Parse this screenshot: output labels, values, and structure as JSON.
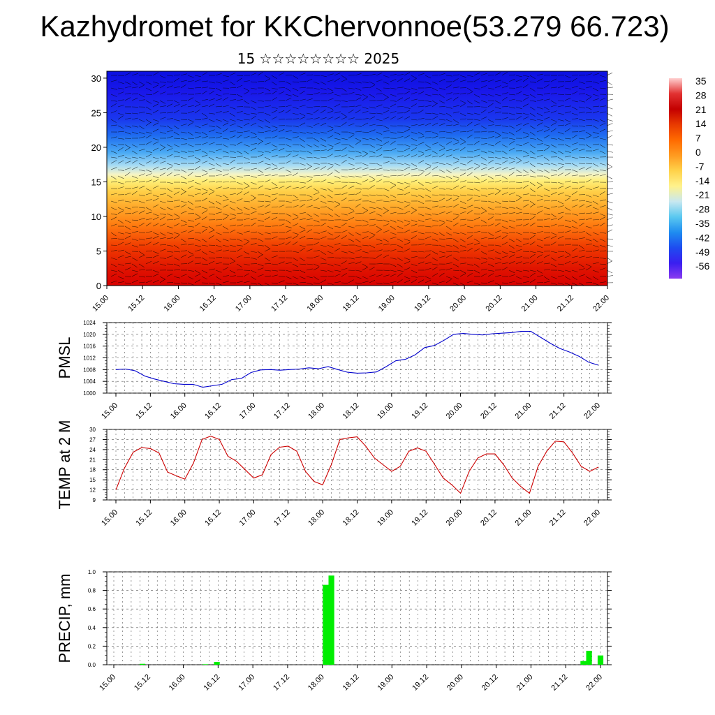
{
  "title": "Kazhydromet for KKChervonnoe(53.279 66.723)",
  "subtitle": "15 ☆☆☆☆☆☆☆☆ 2025",
  "time_labels": [
    "15.00",
    "15.12",
    "16.00",
    "16.12",
    "17.00",
    "17.12",
    "18.00",
    "18.12",
    "19.00",
    "19.12",
    "20.00",
    "20.12",
    "21.00",
    "21.12",
    "22.00"
  ],
  "chart_data": [
    {
      "type": "heatmap",
      "yticks": [
        0,
        5,
        10,
        15,
        20,
        25,
        30
      ],
      "ylim": [
        0,
        31
      ],
      "colorbar": {
        "labels": [
          "35",
          "28",
          "21",
          "14",
          "7",
          "0",
          "-7",
          "-14",
          "-21",
          "-28",
          "-35",
          "-42",
          "-49",
          "-56"
        ],
        "colors": [
          "#ffd0d0",
          "#e23232",
          "#c40000",
          "#e83a00",
          "#ff6a00",
          "#ff9a20",
          "#ffd24a",
          "#fff28c",
          "#c8e8f0",
          "#5ac8f0",
          "#1e8cf0",
          "#1e4cf0",
          "#3a1ef0",
          "#8a3cf0"
        ]
      },
      "colors": {
        "hot": "#d40000",
        "mid": "#ffe04a",
        "cold": "#1020f0",
        "top": "#0a10e0"
      }
    },
    {
      "type": "line",
      "ylabel": "PMSL",
      "yticks": [
        1000,
        1004,
        1008,
        1012,
        1016,
        1020,
        1024
      ],
      "ylim": [
        1000,
        1024
      ],
      "color": "#0000cc",
      "values": [
        1008,
        1008.2,
        1007.6,
        1005.8,
        1004.8,
        1004.0,
        1003.2,
        1003.0,
        1003.0,
        1002.0,
        1002.5,
        1003.0,
        1004.6,
        1005.0,
        1007.0,
        1007.9,
        1008.0,
        1007.8,
        1008.0,
        1008.2,
        1008.6,
        1008.3,
        1009.0,
        1008.0,
        1007.1,
        1006.8,
        1006.9,
        1007.2,
        1009.0,
        1011.0,
        1011.5,
        1013.0,
        1015.5,
        1016.2,
        1018.0,
        1020.0,
        1020.3,
        1020.0,
        1019.8,
        1020.2,
        1020.4,
        1020.6,
        1021.0,
        1021.0,
        1019.0,
        1017.0,
        1015.2,
        1014.0,
        1012.5,
        1010.5,
        1009.5
      ]
    },
    {
      "type": "line",
      "ylabel": "TEMP at 2 M",
      "yticks": [
        9,
        12,
        15,
        18,
        21,
        24,
        27,
        30
      ],
      "ylim": [
        9,
        30
      ],
      "color": "#cc0000",
      "values": [
        12.0,
        18.5,
        23.2,
        24.6,
        24.3,
        23.0,
        17.3,
        16.2,
        15.2,
        20.0,
        27.0,
        28.0,
        27.0,
        22.0,
        20.5,
        18.0,
        15.5,
        16.5,
        22.5,
        24.7,
        25.0,
        23.5,
        17.5,
        14.5,
        13.5,
        19.5,
        27.0,
        27.5,
        27.8,
        25.0,
        21.5,
        19.5,
        17.5,
        19.0,
        23.5,
        24.5,
        23.5,
        19.5,
        15.5,
        13.5,
        11.0,
        17.5,
        21.5,
        22.7,
        22.7,
        19.5,
        15.5,
        13.0,
        11.0,
        19.0,
        23.5,
        26.5,
        26.3,
        23.0,
        19.0,
        17.5,
        18.8
      ]
    },
    {
      "type": "bar",
      "ylabel": "PRECIP, mm",
      "yticks": [
        "0.0",
        "0.2",
        "0.4",
        "0.6",
        "0.8",
        "1.0"
      ],
      "ylim": [
        0,
        1.0
      ],
      "color": "#00ee00",
      "values": [
        0,
        0,
        0,
        0,
        0,
        0.01,
        0,
        0,
        0,
        0,
        0,
        0,
        0,
        0,
        0,
        0,
        0.005,
        0,
        0.03,
        0,
        0,
        0,
        0,
        0,
        0,
        0,
        0,
        0,
        0,
        0,
        0,
        0,
        0,
        0,
        0,
        0,
        0,
        0.86,
        0.96,
        0,
        0,
        0,
        0,
        0,
        0,
        0,
        0,
        0,
        0,
        0,
        0,
        0,
        0,
        0,
        0,
        0,
        0,
        0,
        0,
        0,
        0,
        0,
        0,
        0,
        0,
        0,
        0,
        0,
        0,
        0,
        0,
        0,
        0,
        0,
        0,
        0,
        0,
        0,
        0,
        0,
        0,
        0,
        0.04,
        0.15,
        0,
        0.1
      ]
    }
  ]
}
